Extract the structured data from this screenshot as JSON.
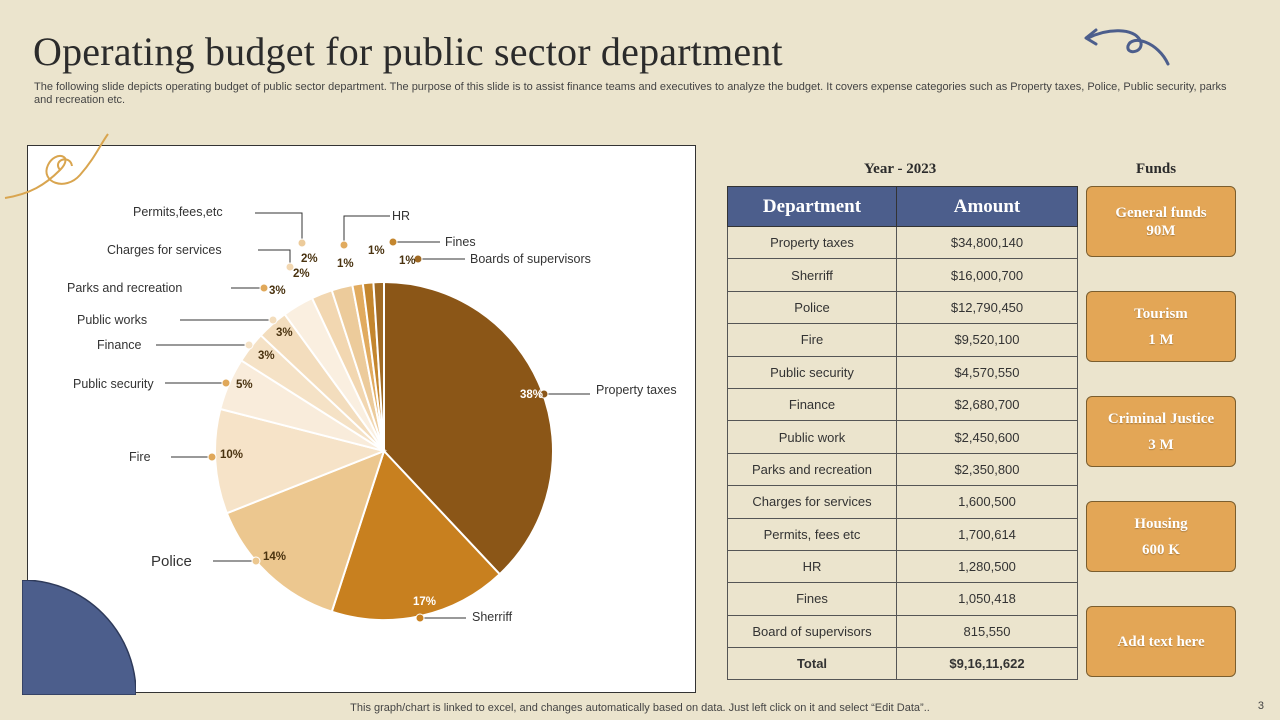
{
  "title": "Operating budget for public sector department",
  "subtitle": "The following slide depicts operating budget of public sector department. The purpose of this slide is to assist finance teams and executives to analyze the budget. It covers expense categories such as Property taxes, Police, Public security, parks and recreation etc.",
  "colors": {
    "background": "#ebe4cd",
    "accent_blue": "#4c5e8c",
    "fund_orange": "#e3a656"
  },
  "chart_data": {
    "type": "pie",
    "slices": [
      {
        "label": "Property taxes",
        "value": 38,
        "value_label": "38%",
        "color": "#8b5617"
      },
      {
        "label": "Sherriff",
        "value": 17,
        "value_label": "17%",
        "color": "#c8801f"
      },
      {
        "label": "Police",
        "value": 14,
        "value_label": "14%",
        "color": "#ecc78f"
      },
      {
        "label": "Fire",
        "value": 10,
        "value_label": "10%",
        "color": "#f6e3c8"
      },
      {
        "label": "Public security",
        "value": 5,
        "value_label": "5%",
        "color": "#f9ecdb"
      },
      {
        "label": "Finance",
        "value": 3,
        "value_label": "3%",
        "color": "#f5e2c6"
      },
      {
        "label": "Public works",
        "value": 3,
        "value_label": "3%",
        "color": "#f3ddbd"
      },
      {
        "label": "Parks and recreation",
        "value": 3,
        "value_label": "3%",
        "color": "#faefe0"
      },
      {
        "label": "Charges for services",
        "value": 2,
        "value_label": "2%",
        "color": "#f2d7b1"
      },
      {
        "label": "Permits,fees,etc",
        "value": 2,
        "value_label": "2%",
        "color": "#eccb9b"
      },
      {
        "label": "HR",
        "value": 1,
        "value_label": "1%",
        "color": "#e1ab5f"
      },
      {
        "label": "Fines",
        "value": 1,
        "value_label": "1%",
        "color": "#c4862e"
      },
      {
        "label": "Boards of supervisors",
        "value": 1,
        "value_label": "1%",
        "color": "#a06a24"
      }
    ]
  },
  "table": {
    "year_label": "Year - 2023",
    "headers": [
      "Department",
      "Amount"
    ],
    "rows": [
      [
        "Property taxes",
        "$34,800,140"
      ],
      [
        "Sherriff",
        "$16,000,700"
      ],
      [
        "Police",
        "$12,790,450"
      ],
      [
        "Fire",
        "$9,520,100"
      ],
      [
        "Public security",
        "$4,570,550"
      ],
      [
        "Finance",
        "$2,680,700"
      ],
      [
        "Public work",
        "$2,450,600"
      ],
      [
        "Parks and recreation",
        "$2,350,800"
      ],
      [
        "Charges for services",
        "1,600,500"
      ],
      [
        "Permits, fees etc",
        "1,700,614"
      ],
      [
        "HR",
        "1,280,500"
      ],
      [
        "Fines",
        "1,050,418"
      ],
      [
        "Board of supervisors",
        "815,550"
      ]
    ],
    "total": [
      "Total",
      "$9,16,11,622"
    ]
  },
  "funds": {
    "heading": "Funds",
    "boxes": [
      {
        "line1": "General funds",
        "line2": "90M"
      },
      {
        "line1": "Tourism",
        "line2": "1 M"
      },
      {
        "line1": "Criminal Justice",
        "line2": "3 M"
      },
      {
        "line1": "Housing",
        "line2": "600 K"
      },
      {
        "line1": "Add text here",
        "line2": ""
      }
    ]
  },
  "footer": "This graph/chart is linked to excel, and changes automatically based on data. Just left click on it and select “Edit Data”..",
  "page_number": "3"
}
